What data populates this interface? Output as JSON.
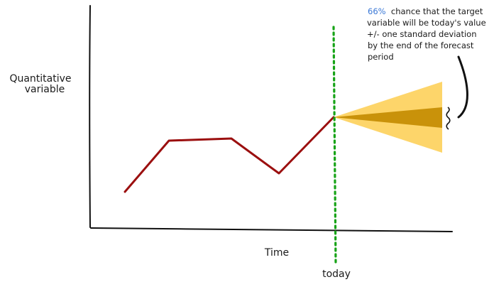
{
  "labels": {
    "y_axis_line1": "Quantitative",
    "y_axis_line2": "variable",
    "x_axis": "Time",
    "today": "today"
  },
  "annotation": {
    "percent": "66%",
    "line1_rest": "  chance that the target",
    "line2": "variable will be today's value",
    "line3": "+/- one standard deviation",
    "line4": "by the end of the forecast",
    "line5": "period"
  },
  "colors": {
    "history_line": "#9b0f0f",
    "today_marker": "#17a317",
    "outer_band": "#fdd56a",
    "inner_band": "#c9920a",
    "axis": "#111111",
    "percent_text": "#3a78d6"
  },
  "icons": {
    "brace": "wavy-brace-icon",
    "pointer": "curved-arrow-icon"
  }
}
